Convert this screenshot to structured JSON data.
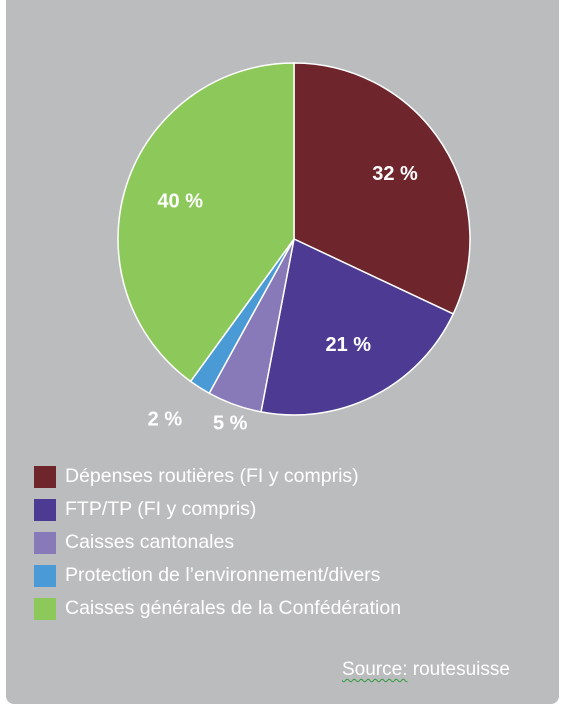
{
  "chart_data": {
    "type": "pie",
    "title": "",
    "slices": [
      {
        "name": "Dépenses routières (FI y compris)",
        "value": 32,
        "label": "32 %",
        "color": "#6e252c"
      },
      {
        "name": "FTP/TP (FI y compris)",
        "value": 21,
        "label": "21 %",
        "color": "#4d3b93"
      },
      {
        "name": "Caisses cantonales",
        "value": 5,
        "label": "5 %",
        "color": "#8879b8"
      },
      {
        "name": "Protection de l’environnement/divers",
        "value": 2,
        "label": "2 %",
        "color": "#4a9ad6"
      },
      {
        "name": "Caisses générales de la Confédération",
        "value": 40,
        "label": "40 %",
        "color": "#8dc95a"
      }
    ],
    "legend_position": "bottom"
  },
  "source": {
    "prefix": "Source:",
    "text": " routesuisse"
  }
}
